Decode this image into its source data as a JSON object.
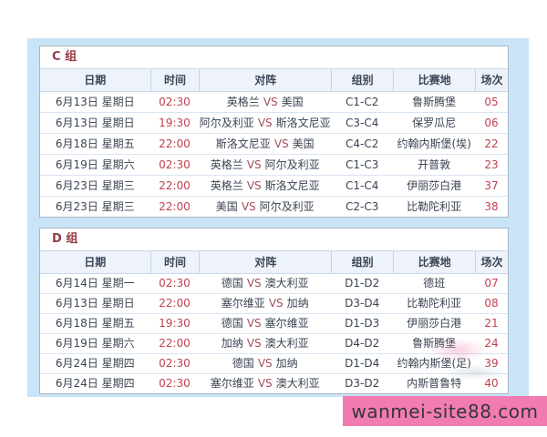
{
  "group_c": {
    "title": "C 组",
    "columns": {
      "date": "日期",
      "time": "时间",
      "match": "对阵",
      "group": "组别",
      "venue": "比赛地",
      "no": "场次"
    },
    "rows": [
      {
        "date": "6月13日 星期日",
        "time": "02:30",
        "home": "英格兰",
        "vs": "VS",
        "away": "美国",
        "group": "C1-C2",
        "venue": "鲁斯腾堡",
        "no": "05"
      },
      {
        "date": "6月13日 星期日",
        "time": "19:30",
        "home": "阿尔及利亚",
        "vs": "VS",
        "away": "斯洛文尼亚",
        "group": "C3-C4",
        "venue": "保罗瓜尼",
        "no": "06"
      },
      {
        "date": "6月18日 星期五",
        "time": "22:00",
        "home": "斯洛文尼亚",
        "vs": "VS",
        "away": "美国",
        "group": "C4-C2",
        "venue": "约翰内斯堡(埃)",
        "no": "22"
      },
      {
        "date": "6月19日 星期六",
        "time": "02:30",
        "home": "英格兰",
        "vs": "VS",
        "away": "阿尔及利亚",
        "group": "C1-C3",
        "venue": "开普敦",
        "no": "23"
      },
      {
        "date": "6月23日 星期三",
        "time": "22:00",
        "home": "英格兰",
        "vs": "VS",
        "away": "斯洛文尼亚",
        "group": "C1-C4",
        "venue": "伊丽莎白港",
        "no": "37"
      },
      {
        "date": "6月23日 星期三",
        "time": "22:00",
        "home": "美国",
        "vs": "VS",
        "away": "阿尔及利亚",
        "group": "C2-C3",
        "venue": "比勒陀利亚",
        "no": "38"
      }
    ]
  },
  "group_d": {
    "title": "D 组",
    "columns": {
      "date": "日期",
      "time": "时间",
      "match": "对阵",
      "group": "组别",
      "venue": "比赛地",
      "no": "场次"
    },
    "rows": [
      {
        "date": "6月14日 星期一",
        "time": "02:30",
        "home": "德国",
        "vs": "VS",
        "away": "澳大利亚",
        "group": "D1-D2",
        "venue": "德班",
        "no": "07"
      },
      {
        "date": "6月13日 星期日",
        "time": "22:00",
        "home": "塞尔维亚",
        "vs": "VS",
        "away": "加纳",
        "group": "D3-D4",
        "venue": "比勒陀利亚",
        "no": "08"
      },
      {
        "date": "6月18日 星期五",
        "time": "19:30",
        "home": "德国",
        "vs": "VS",
        "away": "塞尔维亚",
        "group": "D1-D3",
        "venue": "伊丽莎白港",
        "no": "21"
      },
      {
        "date": "6月19日 星期六",
        "time": "22:00",
        "home": "加纳",
        "vs": "VS",
        "away": "澳大利亚",
        "group": "D4-D2",
        "venue": "鲁斯腾堡",
        "no": "24"
      },
      {
        "date": "6月24日 星期四",
        "time": "02:30",
        "home": "德国",
        "vs": "VS",
        "away": "加纳",
        "group": "D1-D4",
        "venue": "约翰内斯堡(足)",
        "no": "39"
      },
      {
        "date": "6月24日 星期四",
        "time": "02:30",
        "home": "塞尔维亚",
        "vs": "VS",
        "away": "澳大利亚",
        "group": "D3-D2",
        "venue": "内斯普鲁特",
        "no": "40"
      }
    ]
  },
  "watermark": {
    "text": "wanmei-site88.com"
  },
  "colors": {
    "panel_blue": "#c9e4f7",
    "accent_red": "#c24050",
    "title_red": "#963a44",
    "banner_pink": "#f17cb1",
    "header_bg": "#edf2fb"
  }
}
